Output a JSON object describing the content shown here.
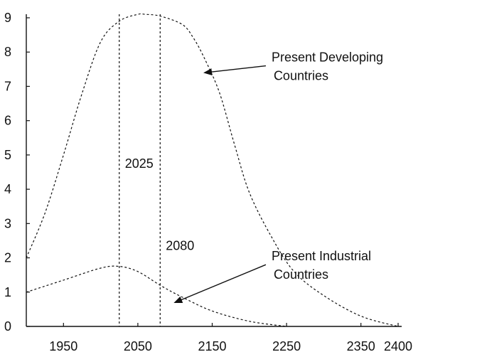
{
  "chart_data": {
    "type": "line",
    "title": "",
    "xlabel": "",
    "ylabel": "",
    "xlim": [
      1900,
      2400
    ],
    "ylim": [
      0,
      9
    ],
    "grid": false,
    "legend": "none",
    "x_ticks": [
      1950,
      2050,
      2150,
      2250,
      2350,
      2400
    ],
    "y_ticks": [
      0,
      1,
      2,
      3,
      4,
      5,
      6,
      7,
      8,
      9
    ],
    "series": [
      {
        "name": "Present Developing Countries",
        "line_style": "dashed",
        "x": [
          1900,
          1925,
          1950,
          1975,
          2000,
          2025,
          2050,
          2060,
          2080,
          2110,
          2125,
          2140,
          2160,
          2180,
          2200,
          2230,
          2260,
          2300,
          2350,
          2400
        ],
        "y": [
          2.0,
          3.3,
          5.0,
          6.8,
          8.3,
          8.9,
          9.1,
          9.1,
          9.05,
          8.8,
          8.4,
          7.8,
          6.8,
          5.3,
          3.9,
          2.6,
          1.6,
          0.9,
          0.3,
          0.0
        ]
      },
      {
        "name": "Present Industrial Countries",
        "line_style": "dashed",
        "x": [
          1900,
          1950,
          2000,
          2025,
          2050,
          2080,
          2110,
          2150,
          2200,
          2250
        ],
        "y": [
          1.0,
          1.35,
          1.7,
          1.75,
          1.6,
          1.2,
          0.85,
          0.45,
          0.15,
          0.0
        ]
      }
    ],
    "vertical_markers": [
      {
        "x": 2025,
        "label": "2025",
        "y_label": 4.75
      },
      {
        "x": 2080,
        "label": "2080",
        "y_label": 2.35
      }
    ],
    "annotations": [
      {
        "lines": [
          "Present Developing",
          "Countries"
        ],
        "arrow_to": [
          2140,
          7.4
        ],
        "text_at": [
          2225,
          7.6
        ]
      },
      {
        "lines": [
          "Present Industrial",
          "Countries"
        ],
        "arrow_to": [
          2100,
          0.7
        ],
        "text_at": [
          2225,
          1.8
        ]
      }
    ]
  }
}
